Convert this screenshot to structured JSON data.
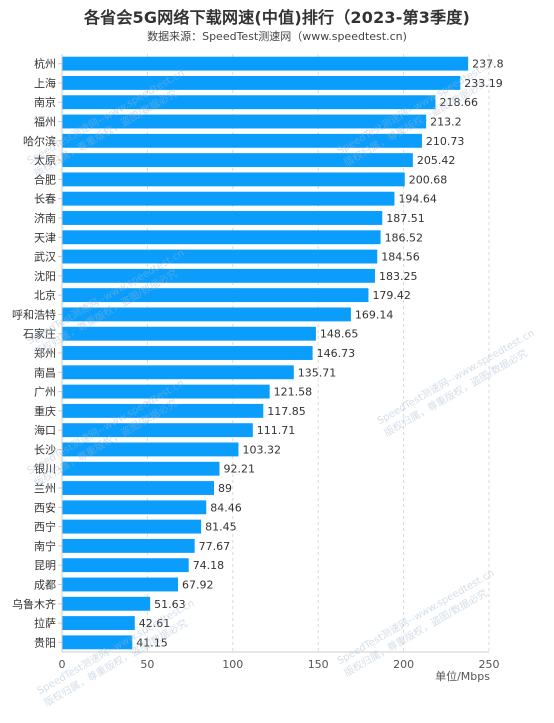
{
  "header": {
    "title": "各省会5G网络下载网速(中值)排行（2023-第3季度)",
    "subtitle": "数据来源：SpeedTest测速网（www.speedtest.cn)"
  },
  "colors": {
    "bar": "#0a9dfc",
    "axis": "#cccccc",
    "gridline": "#d9d9d9",
    "label": "#333333"
  },
  "watermark": {
    "line1": "SpeedTest测速网--www.speedtest.cn",
    "line2": "版权归属，尊重版权，盗图/数据必究"
  },
  "chart_data": {
    "type": "bar",
    "orientation": "horizontal",
    "title": "各省会5G网络下载网速(中值)排行（2023-第3季度)",
    "subtitle": "数据来源：SpeedTest测速网（www.speedtest.cn)",
    "xlabel": "单位/Mbps",
    "ylabel": "",
    "xlim": [
      0,
      250
    ],
    "xticks": [
      "0",
      "50",
      "100",
      "150",
      "200",
      "250"
    ],
    "grid": "vertical-dashed",
    "categories": [
      "杭州",
      "上海",
      "南京",
      "福州",
      "哈尔滨",
      "太原",
      "合肥",
      "长春",
      "济南",
      "天津",
      "武汉",
      "沈阳",
      "北京",
      "呼和浩特",
      "石家庄",
      "郑州",
      "南昌",
      "广州",
      "重庆",
      "海口",
      "长沙",
      "银川",
      "兰州",
      "西安",
      "西宁",
      "南宁",
      "昆明",
      "成都",
      "乌鲁木齐",
      "拉萨",
      "贵阳"
    ],
    "values": [
      237.8,
      233.19,
      218.66,
      213.2,
      210.73,
      205.42,
      200.68,
      194.64,
      187.51,
      186.52,
      184.56,
      183.25,
      179.42,
      169.14,
      148.65,
      146.73,
      135.71,
      121.58,
      117.85,
      111.71,
      103.32,
      92.21,
      89,
      84.46,
      81.45,
      77.67,
      74.18,
      67.92,
      51.63,
      42.61,
      41.15
    ],
    "value_labels": [
      "237.8",
      "233.19",
      "218.66",
      "213.2",
      "210.73",
      "205.42",
      "200.68",
      "194.64",
      "187.51",
      "186.52",
      "184.56",
      "183.25",
      "179.42",
      "169.14",
      "148.65",
      "146.73",
      "135.71",
      "121.58",
      "117.85",
      "111.71",
      "103.32",
      "92.21",
      "89",
      "84.46",
      "81.45",
      "77.67",
      "74.18",
      "67.92",
      "51.63",
      "42.61",
      "41.15"
    ]
  }
}
